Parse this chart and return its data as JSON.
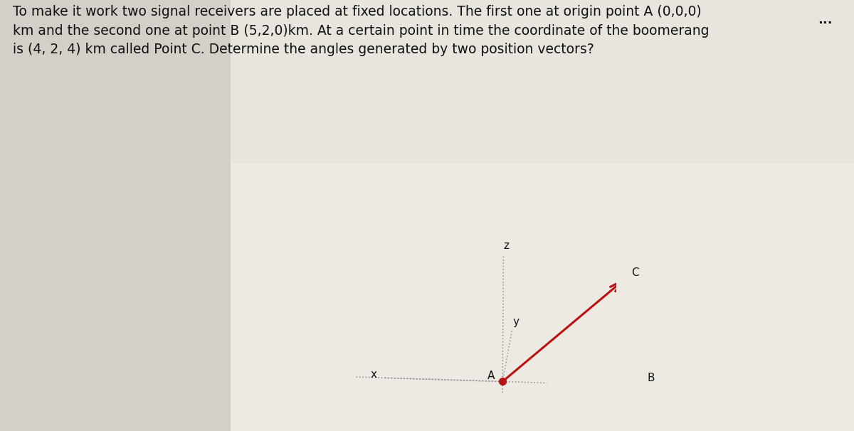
{
  "title_text": "To make it work two signal receivers are placed at fixed locations. The first one at origin point A (0,0,0)\nkm and the second one at point B (5,2,0)km. At a certain point in time the coordinate of the boomerang\nis (4, 2, 4) km called Point C. Determine the angles generated by two position vectors?",
  "point_A": [
    0,
    0,
    0
  ],
  "point_B": [
    5,
    2,
    0
  ],
  "point_C": [
    4,
    2,
    4
  ],
  "arrow_color": "#bb1111",
  "dot_color": "#bb1111",
  "axis_color": "#999999",
  "label_A": "A",
  "label_B": "B",
  "label_C": "C",
  "label_x": "x",
  "label_y": "y",
  "label_z": "z",
  "dots_text": "...",
  "bg_left_color": "#d4cfc8",
  "bg_right_color": "#e8e4de",
  "bg_panel_color": "#edeae4",
  "text_color": "#111111",
  "title_fontsize": 13.5,
  "fig_width": 12.0,
  "fig_height": 6.06,
  "elev": 18,
  "azim": -85
}
